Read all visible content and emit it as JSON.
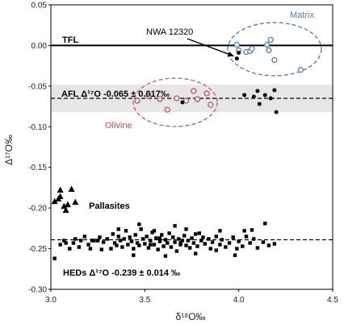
{
  "chart_data": {
    "type": "scatter",
    "xlabel": "δ¹⁸O‰",
    "ylabel": "Δ¹⁷O‰",
    "xlim": [
      3.0,
      4.5
    ],
    "ylim": [
      -0.3,
      0.05
    ],
    "x_ticks": [
      "3.0",
      "3.5",
      "4.0",
      "4.5"
    ],
    "y_ticks": [
      "0.05",
      "0.00",
      "-0.05",
      "-0.10",
      "-0.15",
      "-0.20",
      "-0.25",
      "-0.30"
    ],
    "grid": false,
    "colors": {
      "matrix": "#4f81bd",
      "olivine": "#c0504d",
      "black": "#000000",
      "afl_band": "#e6e6e6"
    },
    "reference_lines": [
      {
        "name": "TFL",
        "label": "TFL",
        "y": 0.0,
        "style": "solid"
      },
      {
        "name": "AFL",
        "label": "AFL Δ¹⁷O -0.065 ± 0.017‰",
        "y": -0.065,
        "band": [
          -0.082,
          -0.048
        ],
        "style": "dashed"
      },
      {
        "name": "HEDs",
        "label": "HEDs Δ¹⁷O -0.239 ± 0.014 ‰",
        "y": -0.239,
        "style": "dashed"
      }
    ],
    "annotations": {
      "nwa": {
        "text": "NWA 12320",
        "points_to": [
          3.99,
          -0.016
        ]
      },
      "matrix_label": "Matrix",
      "olivine_label": "Olivine",
      "pallasites_label": "Pallasites"
    },
    "series": [
      {
        "name": "Matrix",
        "marker": "open-circle",
        "points": [
          [
            3.99,
            0.001
          ],
          [
            4.0,
            -0.006
          ],
          [
            4.04,
            -0.008
          ],
          [
            4.06,
            -0.007
          ],
          [
            4.07,
            -0.004
          ],
          [
            4.15,
            0.001
          ],
          [
            4.16,
            -0.006
          ],
          [
            4.17,
            0.007
          ],
          [
            4.19,
            -0.018
          ],
          [
            4.33,
            -0.03
          ]
        ]
      },
      {
        "name": "Olivine",
        "marker": "open-circle",
        "points": [
          [
            3.46,
            -0.068
          ],
          [
            3.52,
            -0.062
          ],
          [
            3.58,
            -0.066
          ],
          [
            3.62,
            -0.079
          ],
          [
            3.67,
            -0.065
          ],
          [
            3.72,
            -0.068
          ],
          [
            3.76,
            -0.056
          ],
          [
            3.78,
            -0.066
          ],
          [
            3.83,
            -0.059
          ],
          [
            3.85,
            -0.073
          ]
        ]
      },
      {
        "name": "",
        "marker": "filled-circle",
        "points": [
          [
            3.99,
            -0.016
          ],
          [
            4.0,
            -0.009
          ],
          [
            3.7,
            -0.07
          ],
          [
            4.03,
            -0.061
          ],
          [
            4.08,
            -0.063
          ],
          [
            4.1,
            -0.056
          ],
          [
            4.11,
            -0.072
          ],
          [
            4.14,
            -0.061
          ],
          [
            4.17,
            -0.065
          ],
          [
            4.19,
            -0.055
          ],
          [
            4.2,
            -0.082
          ]
        ]
      },
      {
        "name": "Pallasites",
        "marker": "triangle",
        "points": [
          [
            3.02,
            -0.192
          ],
          [
            3.04,
            -0.189
          ],
          [
            3.05,
            -0.186
          ],
          [
            3.05,
            -0.178
          ],
          [
            3.07,
            -0.198
          ],
          [
            3.08,
            -0.203
          ],
          [
            3.09,
            -0.196
          ],
          [
            3.11,
            -0.177
          ],
          [
            3.13,
            -0.193
          ]
        ]
      },
      {
        "name": "HEDs",
        "marker": "filled-square",
        "points": [
          [
            3.02,
            -0.262
          ],
          [
            3.05,
            -0.245
          ],
          [
            3.07,
            -0.24
          ],
          [
            3.08,
            -0.243
          ],
          [
            3.1,
            -0.25
          ],
          [
            3.12,
            -0.243
          ],
          [
            3.13,
            -0.238
          ],
          [
            3.15,
            -0.248
          ],
          [
            3.16,
            -0.24
          ],
          [
            3.18,
            -0.235
          ],
          [
            3.2,
            -0.245
          ],
          [
            3.21,
            -0.25
          ],
          [
            3.23,
            -0.24
          ],
          [
            3.25,
            -0.24
          ],
          [
            3.26,
            -0.236
          ],
          [
            3.28,
            -0.242
          ],
          [
            3.3,
            -0.238
          ],
          [
            3.32,
            -0.25
          ],
          [
            3.33,
            -0.232
          ],
          [
            3.34,
            -0.243
          ],
          [
            3.35,
            -0.246
          ],
          [
            3.36,
            -0.235
          ],
          [
            3.37,
            -0.24
          ],
          [
            3.38,
            -0.248
          ],
          [
            3.39,
            -0.238
          ],
          [
            3.4,
            -0.228
          ],
          [
            3.41,
            -0.245
          ],
          [
            3.42,
            -0.236
          ],
          [
            3.43,
            -0.241
          ],
          [
            3.44,
            -0.25
          ],
          [
            3.45,
            -0.233
          ],
          [
            3.46,
            -0.243
          ],
          [
            3.47,
            -0.246
          ],
          [
            3.48,
            -0.226
          ],
          [
            3.49,
            -0.238
          ],
          [
            3.5,
            -0.244
          ],
          [
            3.51,
            -0.235
          ],
          [
            3.52,
            -0.249
          ],
          [
            3.53,
            -0.24
          ],
          [
            3.54,
            -0.23
          ],
          [
            3.55,
            -0.245
          ],
          [
            3.56,
            -0.237
          ],
          [
            3.57,
            -0.251
          ],
          [
            3.58,
            -0.241
          ],
          [
            3.59,
            -0.233
          ],
          [
            3.6,
            -0.247
          ],
          [
            3.61,
            -0.239
          ],
          [
            3.62,
            -0.243
          ],
          [
            3.63,
            -0.231
          ],
          [
            3.64,
            -0.248
          ],
          [
            3.65,
            -0.236
          ],
          [
            3.66,
            -0.242
          ],
          [
            3.67,
            -0.253
          ],
          [
            3.68,
            -0.238
          ],
          [
            3.69,
            -0.245
          ],
          [
            3.7,
            -0.24
          ],
          [
            3.71,
            -0.234
          ],
          [
            3.72,
            -0.246
          ],
          [
            3.73,
            -0.24
          ],
          [
            3.74,
            -0.249
          ],
          [
            3.75,
            -0.237
          ],
          [
            3.76,
            -0.243
          ],
          [
            3.77,
            -0.232
          ],
          [
            3.78,
            -0.247
          ],
          [
            3.8,
            -0.24
          ],
          [
            3.81,
            -0.236
          ],
          [
            3.82,
            -0.244
          ],
          [
            3.84,
            -0.238
          ],
          [
            3.85,
            -0.25
          ],
          [
            3.86,
            -0.242
          ],
          [
            3.88,
            -0.235
          ],
          [
            3.9,
            -0.245
          ],
          [
            3.91,
            -0.239
          ],
          [
            3.93,
            -0.248
          ],
          [
            3.95,
            -0.243
          ],
          [
            3.97,
            -0.236
          ],
          [
            3.99,
            -0.25
          ],
          [
            4.0,
            -0.241
          ],
          [
            4.02,
            -0.247
          ],
          [
            4.04,
            -0.235
          ],
          [
            4.06,
            -0.243
          ],
          [
            4.08,
            -0.238
          ],
          [
            4.1,
            -0.249
          ],
          [
            4.13,
            -0.242
          ],
          [
            4.16,
            -0.246
          ],
          [
            4.19,
            -0.244
          ],
          [
            3.36,
            -0.226
          ],
          [
            3.47,
            -0.22
          ],
          [
            3.55,
            -0.228
          ],
          [
            3.66,
            -0.222
          ],
          [
            3.72,
            -0.226
          ],
          [
            3.79,
            -0.231
          ],
          [
            3.9,
            -0.228
          ],
          [
            4.03,
            -0.228
          ],
          [
            4.07,
            -0.227
          ],
          [
            4.14,
            -0.219
          ],
          [
            3.44,
            -0.258
          ],
          [
            3.61,
            -0.259
          ],
          [
            3.77,
            -0.256
          ],
          [
            3.98,
            -0.258
          ],
          [
            3.27,
            -0.251
          ],
          [
            3.22,
            -0.24
          ],
          [
            3.88,
            -0.252
          ],
          [
            3.53,
            -0.245
          ],
          [
            3.69,
            -0.243
          ],
          [
            3.58,
            -0.237
          ]
        ]
      }
    ]
  }
}
